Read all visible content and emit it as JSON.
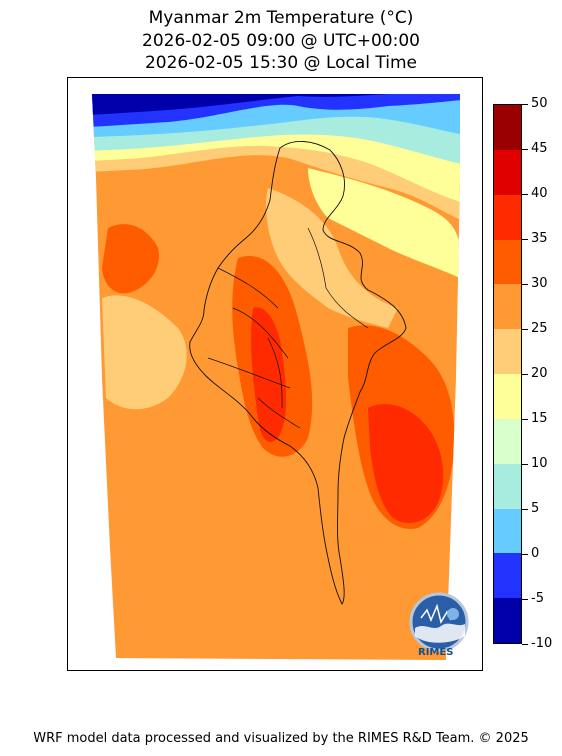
{
  "title": {
    "line1": "Myanmar 2m Temperature (°C)",
    "line2": "2026-02-05 09:00 @ UTC+00:00",
    "line3": "2026-02-05 15:30 @ Local Time"
  },
  "colorbar": {
    "ticks": [
      "50",
      "45",
      "40",
      "35",
      "30",
      "25",
      "20",
      "15",
      "10",
      "5",
      "0",
      "-5",
      "-10"
    ],
    "bins": [
      {
        "from": 45,
        "to": 50,
        "color": "#9b0000"
      },
      {
        "from": 40,
        "to": 45,
        "color": "#e10000"
      },
      {
        "from": 35,
        "to": 40,
        "color": "#ff2a00"
      },
      {
        "from": 30,
        "to": 35,
        "color": "#ff5c00"
      },
      {
        "from": 25,
        "to": 30,
        "color": "#ff9933"
      },
      {
        "from": 20,
        "to": 25,
        "color": "#ffcc77"
      },
      {
        "from": 15,
        "to": 20,
        "color": "#ffff99"
      },
      {
        "from": 10,
        "to": 15,
        "color": "#d8ffcc"
      },
      {
        "from": 5,
        "to": 10,
        "color": "#a7ecdf"
      },
      {
        "from": 0,
        "to": 5,
        "color": "#66ccff"
      },
      {
        "from": -5,
        "to": 0,
        "color": "#2233ff"
      },
      {
        "from": -10,
        "to": -5,
        "color": "#0000aa"
      }
    ]
  },
  "logo": {
    "text": "RIMES"
  },
  "footer": "WRF model data processed and visualized by the RIMES R&D Team. © 2025"
}
